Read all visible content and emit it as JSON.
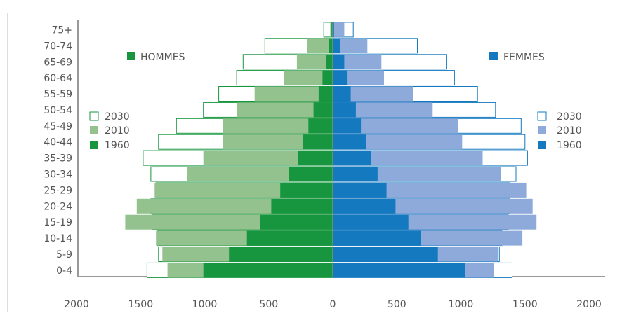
{
  "chart_data": {
    "type": "bar",
    "orientation": "horizontal",
    "chart_kind": "population-pyramid",
    "categories": [
      "0-4",
      "5-9",
      "10-14",
      "15-19",
      "20-24",
      "25-29",
      "30-34",
      "35-39",
      "40-44",
      "45-49",
      "50-54",
      "55-59",
      "60-64",
      "65-69",
      "70-74",
      "75+"
    ],
    "x_ticks": [
      "2000",
      "1500",
      "1000",
      "500",
      "0",
      "500",
      "1000",
      "1500",
      "2000"
    ],
    "xlim": [
      -2000,
      2000
    ],
    "grid": false,
    "groups": {
      "men": {
        "label": "HOMMES",
        "color": "#17963f",
        "series": [
          {
            "name": "2030",
            "values": [
              1450,
              1360,
              1370,
              1410,
              1420,
              1380,
              1420,
              1480,
              1360,
              1220,
              1010,
              890,
              750,
              700,
              530,
              70
            ]
          },
          {
            "name": "2010",
            "values": [
              1290,
              1330,
              1380,
              1620,
              1530,
              1390,
              1140,
              1010,
              860,
              860,
              750,
              610,
              380,
              280,
              200,
              20
            ]
          },
          {
            "name": "1960",
            "values": [
              1010,
              810,
              670,
              570,
              480,
              410,
              340,
              270,
              230,
              190,
              150,
              110,
              80,
              50,
              30,
              10
            ]
          }
        ]
      },
      "women": {
        "label": "FEMMES",
        "color": "#1479bf",
        "series": [
          {
            "name": "2030",
            "values": [
              1400,
              1300,
              1320,
              1370,
              1380,
              1380,
              1430,
              1520,
              1500,
              1470,
              1270,
              1130,
              950,
              890,
              660,
              160
            ]
          },
          {
            "name": "2010",
            "values": [
              1260,
              1290,
              1480,
              1590,
              1560,
              1510,
              1310,
              1170,
              1010,
              980,
              780,
              630,
              400,
              380,
              270,
              90
            ]
          },
          {
            "name": "1960",
            "values": [
              1030,
              820,
              690,
              590,
              490,
              420,
              350,
              300,
              260,
              220,
              180,
              140,
              110,
              90,
              60,
              10
            ]
          }
        ]
      }
    },
    "series_styles": {
      "2030": {
        "men": "#ffffff",
        "women": "#ffffff"
      },
      "2010": {
        "men": "#94c28f",
        "women": "#8eaadb"
      },
      "1960": {
        "men": "#17963f",
        "women": "#1479bf"
      }
    },
    "legend_order": [
      "2030",
      "2010",
      "1960"
    ],
    "legend_placement": "left and right of chart"
  }
}
